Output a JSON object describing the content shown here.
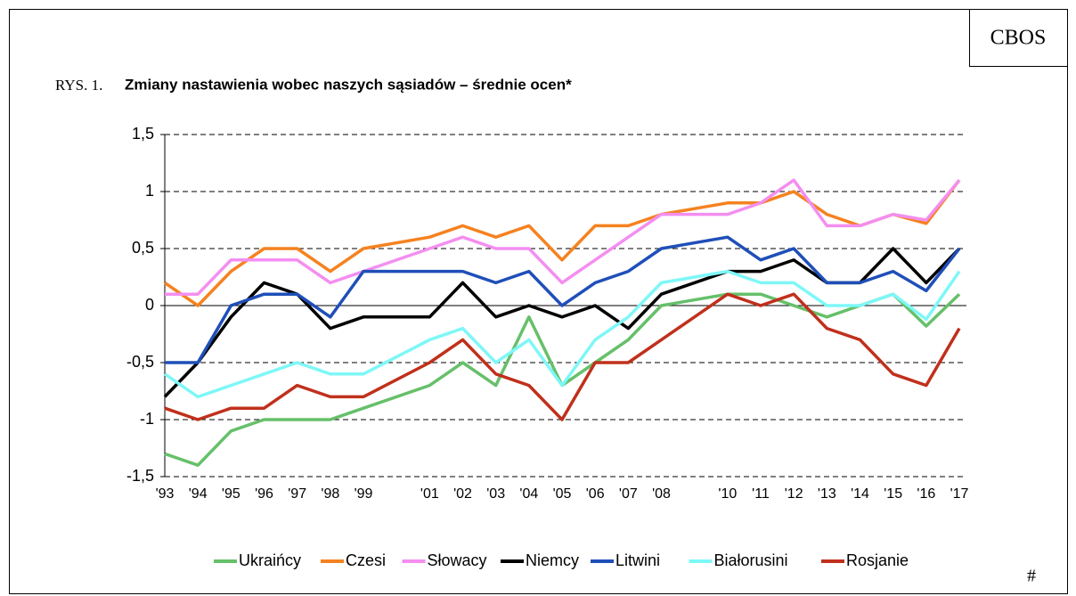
{
  "brand": "CBOS",
  "page_marker": "#",
  "chart_data": {
    "type": "line",
    "figure_label": "RYS. 1.",
    "title": "Zmiany nastawienia wobec naszych sąsiadów – średnie ocen*",
    "x": [
      1993,
      1994,
      1995,
      1996,
      1997,
      1998,
      1999,
      2001,
      2002,
      2003,
      2004,
      2005,
      2006,
      2007,
      2008,
      2010,
      2011,
      2012,
      2013,
      2014,
      2015,
      2016,
      2017
    ],
    "xlim": [
      1993,
      2017
    ],
    "xticks": [
      {
        "value": 1993,
        "label": "'93"
      },
      {
        "value": 1994,
        "label": "'94"
      },
      {
        "value": 1995,
        "label": "'95"
      },
      {
        "value": 1996,
        "label": "'96"
      },
      {
        "value": 1997,
        "label": "'97"
      },
      {
        "value": 1998,
        "label": "'98"
      },
      {
        "value": 1999,
        "label": "'99"
      },
      {
        "value": 2001,
        "label": "'01"
      },
      {
        "value": 2002,
        "label": "'02"
      },
      {
        "value": 2003,
        "label": "'03"
      },
      {
        "value": 2004,
        "label": "'04"
      },
      {
        "value": 2005,
        "label": "'05"
      },
      {
        "value": 2006,
        "label": "'06"
      },
      {
        "value": 2007,
        "label": "'07"
      },
      {
        "value": 2008,
        "label": "'08"
      },
      {
        "value": 2010,
        "label": "'10"
      },
      {
        "value": 2011,
        "label": "'11"
      },
      {
        "value": 2012,
        "label": "'12"
      },
      {
        "value": 2013,
        "label": "'13"
      },
      {
        "value": 2014,
        "label": "'14"
      },
      {
        "value": 2015,
        "label": "'15"
      },
      {
        "value": 2016,
        "label": "'16"
      },
      {
        "value": 2017,
        "label": "'17"
      }
    ],
    "ylim": [
      -1.5,
      1.5
    ],
    "yticks": [
      {
        "value": -1.5,
        "label": "-1,5"
      },
      -1,
      {
        "value": -0.5,
        "label": "-0,5"
      },
      0,
      {
        "value": 0.5,
        "label": "0,5"
      },
      1,
      {
        "value": 1.5,
        "label": "1,5"
      }
    ],
    "grid": true,
    "legend": "bottom",
    "series": [
      {
        "name": "Ukraińcy",
        "color": "#66c06a",
        "values": [
          -1.3,
          -1.4,
          -1.1,
          -1.0,
          -1.0,
          -1.0,
          -0.9,
          -0.7,
          -0.5,
          -0.7,
          -0.1,
          -0.7,
          -0.5,
          -0.3,
          0,
          0.1,
          0.1,
          0,
          -0.1,
          0,
          0.1,
          -0.18,
          0.1
        ]
      },
      {
        "name": "Czesi",
        "color": "#f58220",
        "values": [
          0.2,
          0,
          0.3,
          0.5,
          0.5,
          0.3,
          0.5,
          0.6,
          0.7,
          0.6,
          0.7,
          0.4,
          0.7,
          0.7,
          0.8,
          0.9,
          0.9,
          1.0,
          0.8,
          0.7,
          0.8,
          0.72,
          1.1
        ]
      },
      {
        "name": "Słowacy",
        "color": "#f48ef0",
        "values": [
          0.1,
          0.1,
          0.4,
          0.4,
          0.4,
          0.2,
          0.3,
          0.5,
          0.6,
          0.5,
          0.5,
          0.2,
          0.4,
          0.6,
          0.8,
          0.8,
          0.9,
          1.1,
          0.7,
          0.7,
          0.8,
          0.75,
          1.1
        ]
      },
      {
        "name": "Niemcy",
        "color": "#000000",
        "values": [
          -0.8,
          -0.5,
          -0.1,
          0.2,
          0.1,
          -0.2,
          -0.1,
          -0.1,
          0.2,
          -0.1,
          0,
          -0.1,
          0,
          -0.2,
          0.1,
          0.3,
          0.3,
          0.4,
          0.2,
          0.2,
          0.5,
          0.2,
          0.5
        ]
      },
      {
        "name": "Litwini",
        "color": "#1f4fb8",
        "values": [
          -0.5,
          -0.5,
          0,
          0.1,
          0.1,
          -0.1,
          0.3,
          0.3,
          0.3,
          0.2,
          0.3,
          0,
          0.2,
          0.3,
          0.5,
          0.6,
          0.4,
          0.5,
          0.2,
          0.2,
          0.3,
          0.13,
          0.5
        ]
      },
      {
        "name": "Białorusini",
        "color": "#7ef7f7",
        "values": [
          -0.6,
          -0.8,
          -0.7,
          -0.6,
          -0.5,
          -0.6,
          -0.6,
          -0.3,
          -0.2,
          -0.5,
          -0.3,
          -0.7,
          -0.3,
          -0.1,
          0.2,
          0.3,
          0.2,
          0.2,
          0,
          0,
          0.1,
          -0.12,
          0.3
        ]
      },
      {
        "name": "Rosjanie",
        "color": "#c0301c",
        "values": [
          -0.9,
          -1.0,
          -0.9,
          -0.9,
          -0.7,
          -0.8,
          -0.8,
          -0.5,
          -0.3,
          -0.6,
          -0.7,
          -1.0,
          -0.5,
          -0.5,
          -0.3,
          0.1,
          0,
          0.1,
          -0.2,
          -0.3,
          -0.6,
          -0.7,
          -0.2
        ]
      }
    ]
  }
}
